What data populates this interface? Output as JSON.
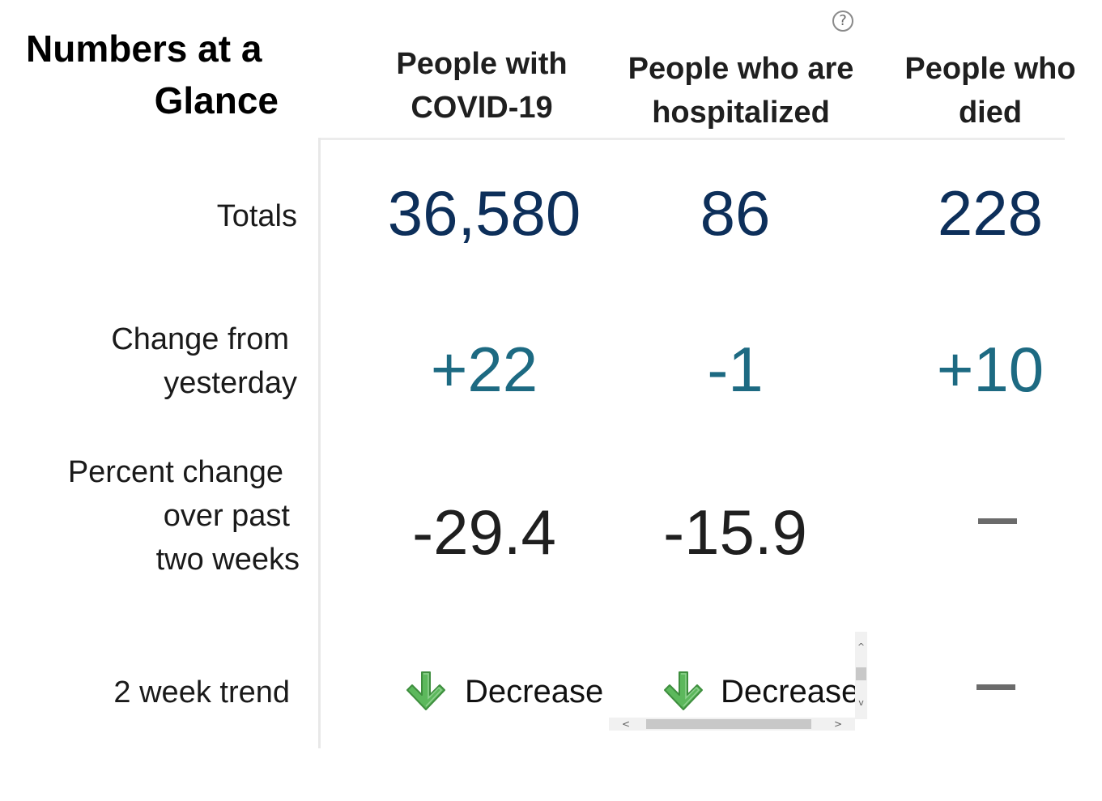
{
  "title": {
    "line1": "Numbers at a",
    "line2": "Glance"
  },
  "columns": [
    {
      "line1": "People with",
      "line2": "COVID-19"
    },
    {
      "line1": "People who are",
      "line2": "hospitalized"
    },
    {
      "line1": "People who",
      "line2": "died"
    }
  ],
  "help_icon_glyph": "?",
  "rows": {
    "totals": {
      "label": "Totals",
      "values": [
        "36,580",
        "86",
        "228"
      ]
    },
    "change": {
      "label_line1": "Change from",
      "label_line2": "yesterday",
      "values": [
        "+22",
        "-1",
        "+10"
      ]
    },
    "percent": {
      "label_line1": "Percent change",
      "label_line2": "over past",
      "label_line3": "two weeks",
      "values": [
        "-29.4",
        "-15.9",
        ""
      ]
    },
    "trend": {
      "label": "2 week trend",
      "values": [
        "Decrease",
        "Decrease",
        ""
      ]
    }
  },
  "scrollbar": {
    "up": "^",
    "down": "v",
    "left": "<",
    "right": ">"
  },
  "colors": {
    "totals": "#0d2f5a",
    "change": "#1d6a82",
    "arrow_green": "#5cb85c"
  },
  "icons": {
    "help": "question-circle-icon",
    "trend_down": "arrow-down-icon",
    "no_data": "dash-icon"
  }
}
